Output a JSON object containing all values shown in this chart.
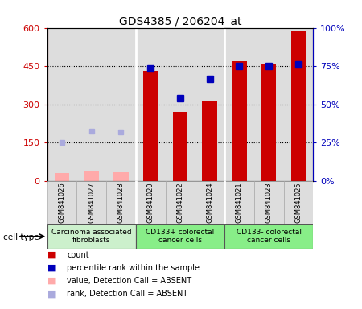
{
  "title": "GDS4385 / 206204_at",
  "samples": [
    "GSM841026",
    "GSM841027",
    "GSM841028",
    "GSM841020",
    "GSM841022",
    "GSM841024",
    "GSM841021",
    "GSM841023",
    "GSM841025"
  ],
  "count_values": [
    null,
    null,
    null,
    430,
    270,
    310,
    470,
    460,
    590
  ],
  "count_absent": [
    30,
    40,
    35,
    null,
    null,
    null,
    null,
    null,
    null
  ],
  "rank_left_values": [
    null,
    null,
    null,
    440,
    325,
    400,
    450,
    450,
    455
  ],
  "rank_left_absent": [
    150,
    195,
    190,
    null,
    null,
    null,
    null,
    null,
    null
  ],
  "ylim_left": [
    0,
    600
  ],
  "ylim_right": [
    0,
    100
  ],
  "yticks_left": [
    0,
    150,
    300,
    450,
    600
  ],
  "ytick_labels_left": [
    "0",
    "150",
    "300",
    "450",
    "600"
  ],
  "yticks_right": [
    0,
    25,
    50,
    75,
    100
  ],
  "ytick_labels_right": [
    "0%",
    "25%",
    "50%",
    "75%",
    "100%"
  ],
  "hgrid_lines": [
    150,
    300,
    450
  ],
  "cell_groups": [
    {
      "label": "Carcinoma associated\nfibroblasts",
      "start": 0,
      "end": 2,
      "color": "#ccf0cc"
    },
    {
      "label": "CD133+ colorectal\ncancer cells",
      "start": 3,
      "end": 5,
      "color": "#88ee88"
    },
    {
      "label": "CD133- colorectal\ncancer cells",
      "start": 6,
      "end": 8,
      "color": "#88ee88"
    }
  ],
  "bar_color_present": "#cc0000",
  "bar_color_absent": "#ffaaaa",
  "dot_color_present": "#0000bb",
  "dot_color_absent": "#aaaadd",
  "bg_color": "#dddddd",
  "axis_color_left": "#cc0000",
  "axis_color_right": "#0000bb",
  "sep_color": "white",
  "legend_items": [
    {
      "color": "#cc0000",
      "label": "count"
    },
    {
      "color": "#0000bb",
      "label": "percentile rank within the sample"
    },
    {
      "color": "#ffaaaa",
      "label": "value, Detection Call = ABSENT"
    },
    {
      "color": "#aaaadd",
      "label": "rank, Detection Call = ABSENT"
    }
  ],
  "bar_width": 0.5,
  "dot_size": 6
}
